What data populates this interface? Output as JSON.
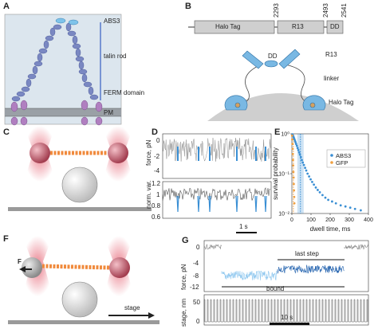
{
  "panels": {
    "A": {
      "letter": "A",
      "abs3": "ABS3",
      "talin_rod": "talin rod",
      "ferm": "FERM domain",
      "pm": "PM"
    },
    "B": {
      "letter": "B",
      "positions": [
        "2293",
        "2493",
        "2541"
      ],
      "halo_box": "Halo Tag",
      "r13_box": "R13",
      "dd_box": "DD",
      "dd_label": "DD",
      "r13_label": "R13",
      "linker": "linker",
      "halo_label": "Halo Tag"
    },
    "C": {
      "letter": "C"
    },
    "D": {
      "letter": "D",
      "ylabel_top": "force, pN",
      "ylabel_bottom": "norm. var.",
      "top_ticks": [
        "0",
        "-2",
        "-4"
      ],
      "bottom_ticks": [
        "1.2",
        "1",
        "0.8",
        "0.6"
      ],
      "scalebar": "1 s"
    },
    "E": {
      "letter": "E"
    },
    "F": {
      "letter": "F",
      "force_label": "F",
      "stage_label": "stage"
    },
    "G": {
      "letter": "G",
      "ylabel_top": "force, pN",
      "ylabel_bottom": "stage, nm",
      "top_ticks": [
        "0",
        "-4",
        "-8",
        "-12"
      ],
      "bottom_ticks": [
        "50",
        "0"
      ],
      "last_step": "last step",
      "bound": "bound",
      "scalebar": "10 s"
    }
  },
  "colors": {
    "talin": "#7a88c2",
    "talin_dark": "#4c5a9a",
    "abs3": "#7ec3ea",
    "membrane_bg": "#dce6ee",
    "integrin": "#b07fc0",
    "trap": "#e8707f",
    "bead": "#c65a6b",
    "dna": "#f08a3c",
    "halo": "#79b8e3",
    "trace_gray": "#888888",
    "trace_blue": "#3a8fd4",
    "trace_light_blue": "#8ec7ef",
    "trace_dark_blue": "#1e5fad",
    "gfp_orange": "#f0a040"
  },
  "chart_data": [
    {
      "panel": "E",
      "type": "scatter",
      "xlabel": "dwell time, ms",
      "ylabel": "survival probability",
      "yscale": "log",
      "xlim": [
        0,
        400
      ],
      "ylim": [
        0.01,
        1
      ],
      "xticks": [
        "0",
        "100",
        "200",
        "300",
        "400"
      ],
      "yticks": [
        "10⁰",
        "10⁻¹",
        "10⁻²"
      ],
      "legend_position": "top-right",
      "series": [
        {
          "name": "ABS3",
          "color": "#3a8fd4",
          "x": [
            3,
            5,
            8,
            10,
            13,
            16,
            19,
            22,
            26,
            30,
            34,
            38,
            42,
            47,
            52,
            57,
            63,
            69,
            75,
            82,
            90,
            98,
            106,
            115,
            125,
            135,
            146,
            160,
            175,
            190,
            210,
            230,
            255,
            280,
            305,
            330,
            360
          ],
          "y": [
            0.97,
            0.92,
            0.86,
            0.8,
            0.74,
            0.68,
            0.62,
            0.56,
            0.5,
            0.44,
            0.39,
            0.34,
            0.3,
            0.26,
            0.22,
            0.19,
            0.165,
            0.14,
            0.12,
            0.1,
            0.085,
            0.072,
            0.062,
            0.053,
            0.045,
            0.039,
            0.034,
            0.029,
            0.025,
            0.022,
            0.02,
            0.018,
            0.016,
            0.015,
            0.014,
            0.013,
            0.012
          ]
        },
        {
          "name": "GFP",
          "color": "#f0a040",
          "x": [
            1,
            2,
            3,
            4,
            5,
            6,
            7,
            8,
            9,
            10,
            11,
            12,
            13
          ],
          "y": [
            0.9,
            0.72,
            0.56,
            0.42,
            0.31,
            0.22,
            0.16,
            0.11,
            0.08,
            0.055,
            0.038,
            0.026,
            0.018
          ]
        }
      ],
      "annotations": [
        {
          "type": "vline",
          "x": 8,
          "color": "#f0a040"
        },
        {
          "type": "vline",
          "x": 45,
          "color": "#3a8fd4"
        }
      ]
    },
    {
      "panel": "D",
      "type": "line",
      "ylabel": "force, pN",
      "ylim": [
        -4,
        1
      ]
    },
    {
      "panel": "G",
      "type": "line",
      "ylabel": "force, pN",
      "ylim": [
        -13,
        1
      ]
    }
  ]
}
